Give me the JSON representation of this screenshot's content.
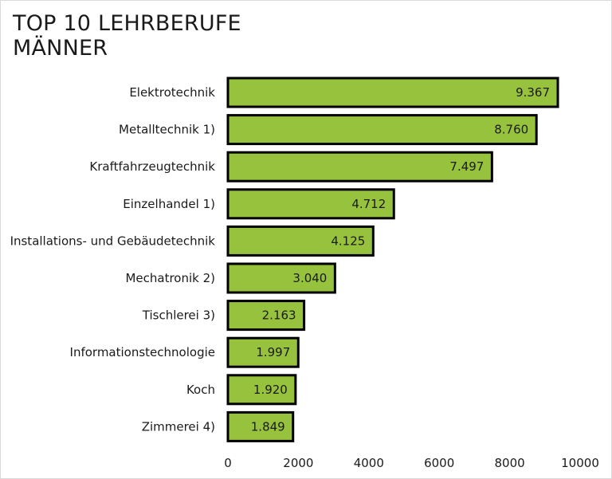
{
  "chart_data": {
    "type": "bar",
    "orientation": "horizontal",
    "title_lines": [
      "TOP 10 LEHRBERUFE",
      "MÄNNER"
    ],
    "categories": [
      "Elektrotechnik",
      "Metalltechnik 1)",
      "Kraftfahrzeugtechnik",
      "Einzelhandel 1)",
      "Installations- und Gebäudetechnik",
      "Mechatronik 2)",
      "Tischlerei 3)",
      "Informationstechnologie",
      "Koch",
      "Zimmerei 4)"
    ],
    "values": [
      9367,
      8760,
      7497,
      4712,
      4125,
      3040,
      2163,
      1997,
      1920,
      1849
    ],
    "value_labels": [
      "9.367",
      "8.760",
      "7.497",
      "4.712",
      "4.125",
      "3.040",
      "2.163",
      "1.997",
      "1.920",
      "1.849"
    ],
    "xlim": [
      0,
      10000
    ],
    "xticks": [
      0,
      2000,
      4000,
      6000,
      8000,
      10000
    ],
    "xtick_labels": [
      "0",
      "2000",
      "4000",
      "6000",
      "8000",
      "10000"
    ],
    "xlabel": "",
    "ylabel": "",
    "grid": false,
    "legend": "none",
    "bar_color": "#97c23d",
    "bar_edge_color": "#000000"
  }
}
